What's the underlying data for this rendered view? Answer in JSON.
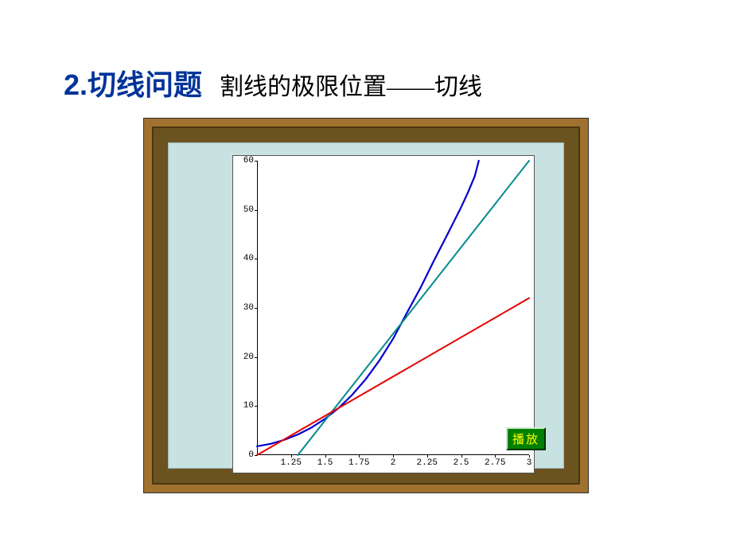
{
  "title": {
    "main": "2.切线问题",
    "sub": "割线的极限位置——切线"
  },
  "chart": {
    "type": "line",
    "background_color": "#ffffff",
    "border_color": "#555555",
    "xlim": [
      1,
      3
    ],
    "ylim": [
      0,
      60
    ],
    "xticks": [
      1.25,
      1.5,
      1.75,
      2,
      2.25,
      2.5,
      2.75,
      3
    ],
    "yticks": [
      0,
      10,
      20,
      30,
      40,
      50,
      60
    ],
    "tick_fontsize": 11,
    "curves": [
      {
        "name": "curve-blue",
        "color": "#0000cc",
        "width": 2.2,
        "points": [
          [
            1.0,
            1.8
          ],
          [
            1.1,
            2.3
          ],
          [
            1.2,
            3.1
          ],
          [
            1.3,
            4.2
          ],
          [
            1.4,
            5.6
          ],
          [
            1.5,
            7.4
          ],
          [
            1.6,
            9.6
          ],
          [
            1.7,
            12.3
          ],
          [
            1.8,
            15.5
          ],
          [
            1.9,
            19.3
          ],
          [
            2.0,
            23.7
          ],
          [
            2.1,
            28.9
          ],
          [
            2.2,
            34.0
          ],
          [
            2.3,
            39.6
          ],
          [
            2.4,
            45.0
          ],
          [
            2.5,
            50.5
          ],
          [
            2.55,
            53.5
          ],
          [
            2.6,
            56.8
          ],
          [
            2.63,
            60.0
          ]
        ]
      },
      {
        "name": "line-teal",
        "color": "#008b8b",
        "width": 2.0,
        "points": [
          [
            1.3,
            0.0
          ],
          [
            3.0,
            60.0
          ]
        ]
      },
      {
        "name": "line-red",
        "color": "#e60000",
        "width": 2.0,
        "points": [
          [
            1.0,
            0.0
          ],
          [
            3.0,
            32.0
          ]
        ]
      }
    ]
  },
  "frame": {
    "outer_color": "#a0712f",
    "bevel_color": "#6b5320",
    "inner_color": "#c7e2e0"
  },
  "button": {
    "label": "播放",
    "bg": "#008000",
    "fg": "#ffff00"
  }
}
